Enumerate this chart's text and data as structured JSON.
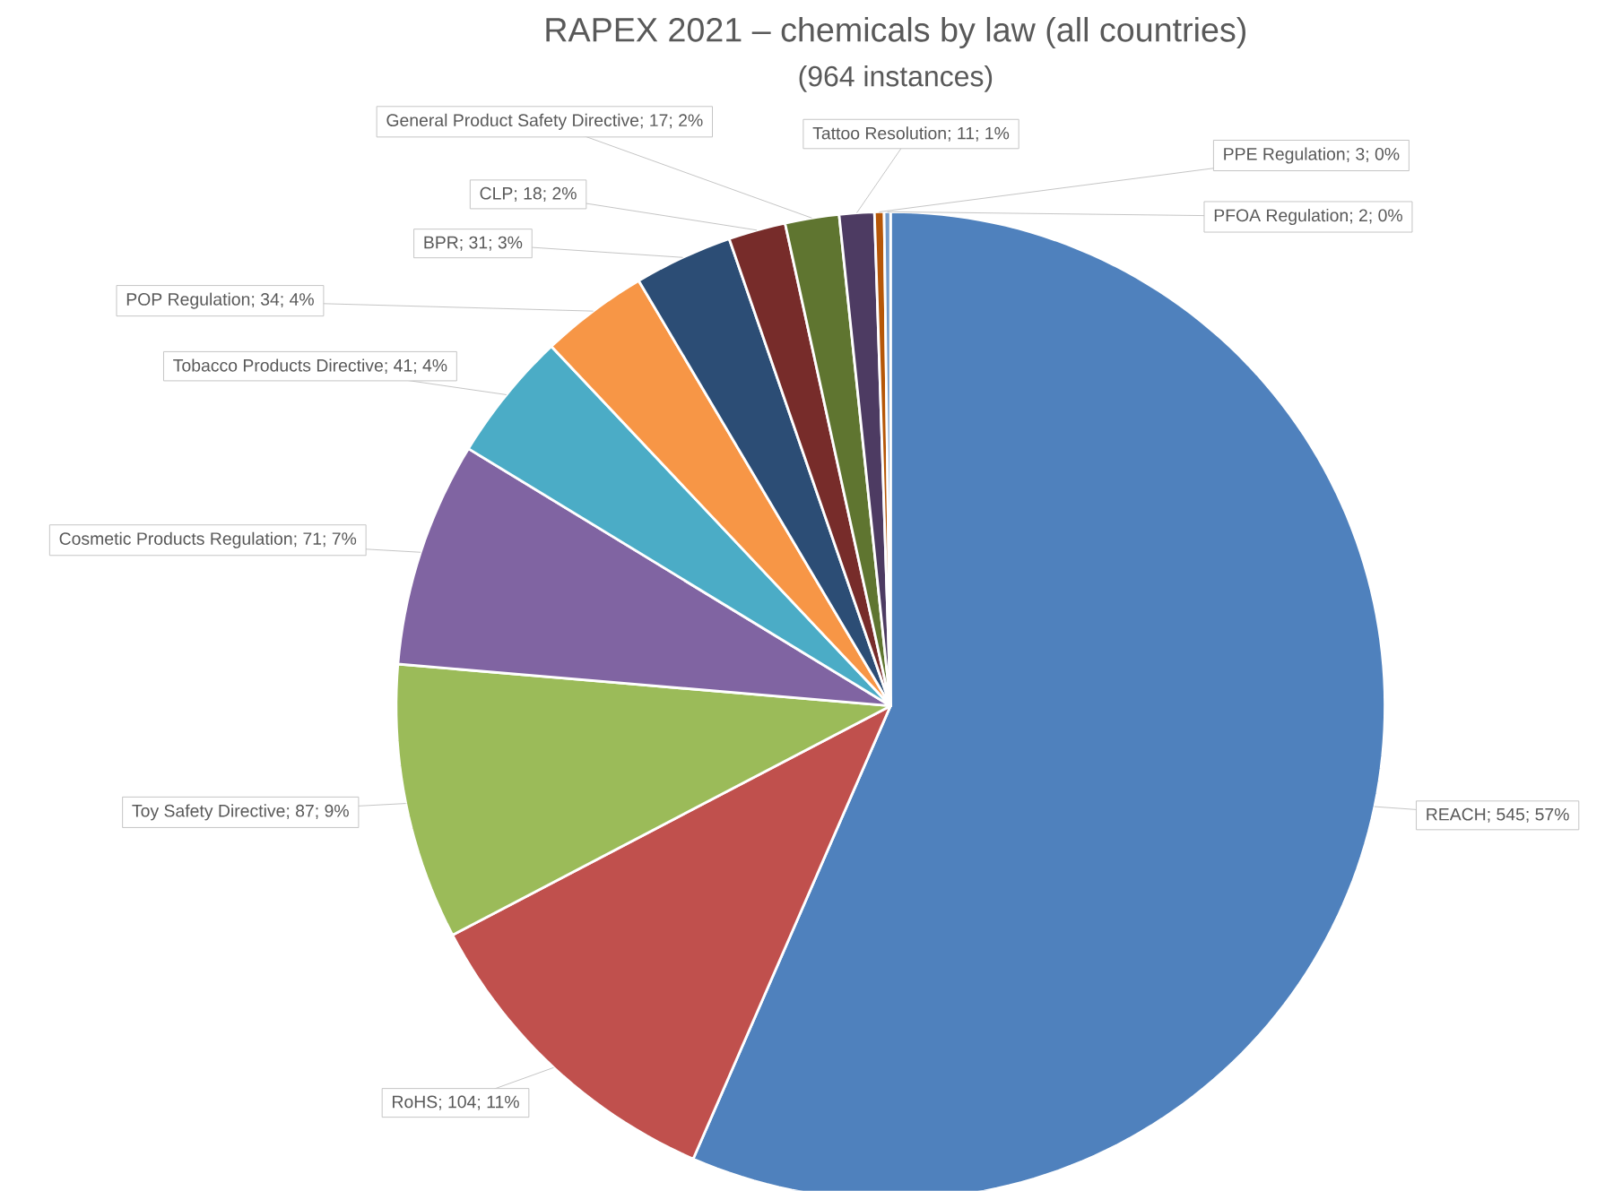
{
  "chart_data": {
    "type": "pie",
    "title": "RAPEX 2021 – chemicals by law (all countries)",
    "subtitle": "(964 instances)",
    "categories": [
      "REACH",
      "RoHS",
      "Toy Safety Directive",
      "Cosmetic Products Regulation",
      "Tobacco Products Directive",
      "POP Regulation",
      "BPR",
      "CLP",
      "General Product Safety Directive",
      "Tattoo Resolution",
      "PPE Regulation",
      "PFOA Regulation"
    ],
    "values": [
      545,
      104,
      87,
      71,
      41,
      34,
      31,
      18,
      17,
      11,
      3,
      2
    ],
    "value_labels": [
      "; 545; 57%",
      "; 104; 11%",
      "; 87; 9%",
      "; 71; 7%",
      "; 41; 4%",
      "; 34; 4%",
      "; 31; 3%",
      "; 18; 2%",
      "; 17; 2%",
      "; 11; 1%",
      "; 3; 0%",
      "; 2; 0%"
    ],
    "colors": [
      "#4f81bd",
      "#c0504d",
      "#9bbb59",
      "#8064a2",
      "#4bacc6",
      "#f79646",
      "#2c4d75",
      "#772c2a",
      "#5f7530",
      "#4d3b62",
      "#b65708",
      "#729aca"
    ]
  }
}
